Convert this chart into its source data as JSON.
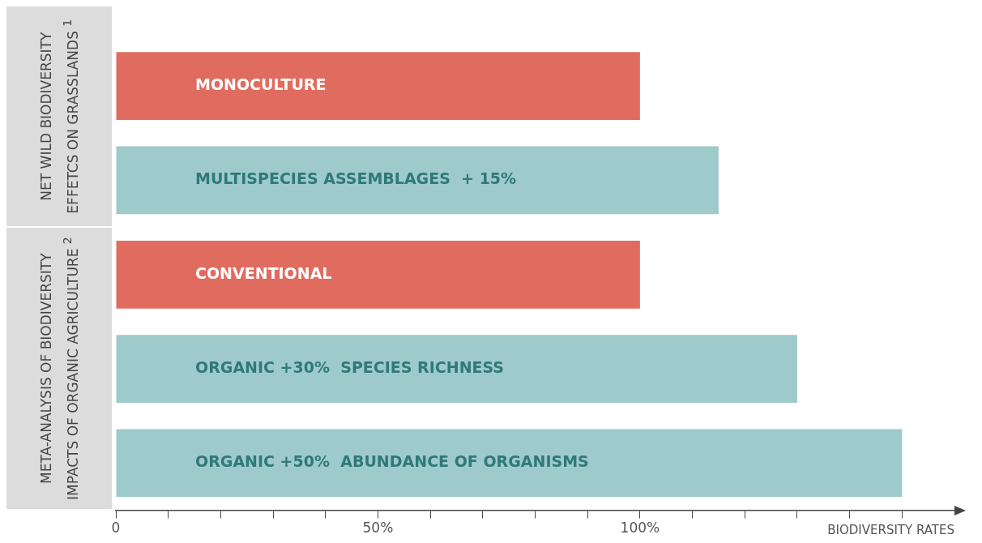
{
  "chart_data": {
    "type": "bar",
    "orientation": "horizontal",
    "categories": [
      "MONOCULTURE",
      "MULTISPECIES ASSEMBLAGES  + 15%",
      "CONVENTIONAL",
      "ORGANIC +30%  SPECIES RICHNESS",
      "ORGANIC +50%  ABUNDANCE OF ORGANISMS"
    ],
    "values": [
      100,
      115,
      100,
      130,
      150
    ],
    "colors": [
      "#e06c5f",
      "#9fcacc",
      "#e06c5f",
      "#9fcacc",
      "#9fcacc"
    ],
    "xlim": [
      0,
      160
    ],
    "xticks": [
      0,
      {
        "value": 10,
        "label": null
      },
      {
        "value": 20,
        "label": null
      },
      {
        "value": 30,
        "label": null
      },
      {
        "value": 40,
        "label": null
      },
      {
        "value": 50,
        "label": "50%"
      },
      {
        "value": 60,
        "label": null
      },
      {
        "value": 70,
        "label": null
      },
      {
        "value": 80,
        "label": null
      },
      {
        "value": 90,
        "label": null
      },
      {
        "value": 100,
        "label": "100%"
      },
      {
        "value": 110,
        "label": null
      },
      {
        "value": 120,
        "label": null
      },
      {
        "value": 130,
        "label": null
      },
      {
        "value": 140,
        "label": null
      },
      {
        "value": 150,
        "label": null
      }
    ],
    "xlabel": "BIODIVERSITY RATES",
    "grid": false,
    "legend": false,
    "annotations": [
      "NET WILD BIODIVERSITY EFFETCS ON GRASSLANDS $^{1}$",
      "META-ANALYSIS OF BIODIVERSITY IMPACTS OF ORGANIC AGRICULTURE $^{2}$"
    ]
  }
}
